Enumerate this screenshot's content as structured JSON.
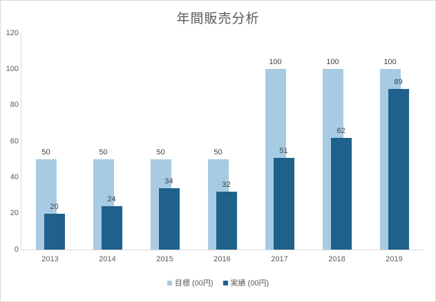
{
  "chart_data": {
    "type": "bar",
    "title": "年間販売分析",
    "categories": [
      "2013",
      "2014",
      "2015",
      "2016",
      "2017",
      "2018",
      "2019"
    ],
    "series": [
      {
        "name": "目標 (00円)",
        "color": "#A7CBE2",
        "values": [
          50,
          50,
          50,
          50,
          100,
          100,
          100
        ]
      },
      {
        "name": "実績 (00円)",
        "color": "#20618C",
        "values": [
          20,
          24,
          34,
          32,
          51,
          62,
          89
        ]
      }
    ],
    "ylim": [
      0,
      120
    ],
    "yticks": [
      0,
      20,
      40,
      60,
      80,
      100,
      120
    ],
    "xlabel": "",
    "ylabel": "",
    "grid": false,
    "legend_position": "bottom",
    "data_labels": true,
    "bar_style": "overlapped"
  },
  "colors": {
    "background": "#FFFFFF",
    "chart_border": "#D9D9D9",
    "axis_line": "#D9D9D9",
    "title_text": "#595959",
    "tick_text": "#595959",
    "category_text": "#595959",
    "legend_text": "#595959",
    "data_label_text": "#404040"
  }
}
